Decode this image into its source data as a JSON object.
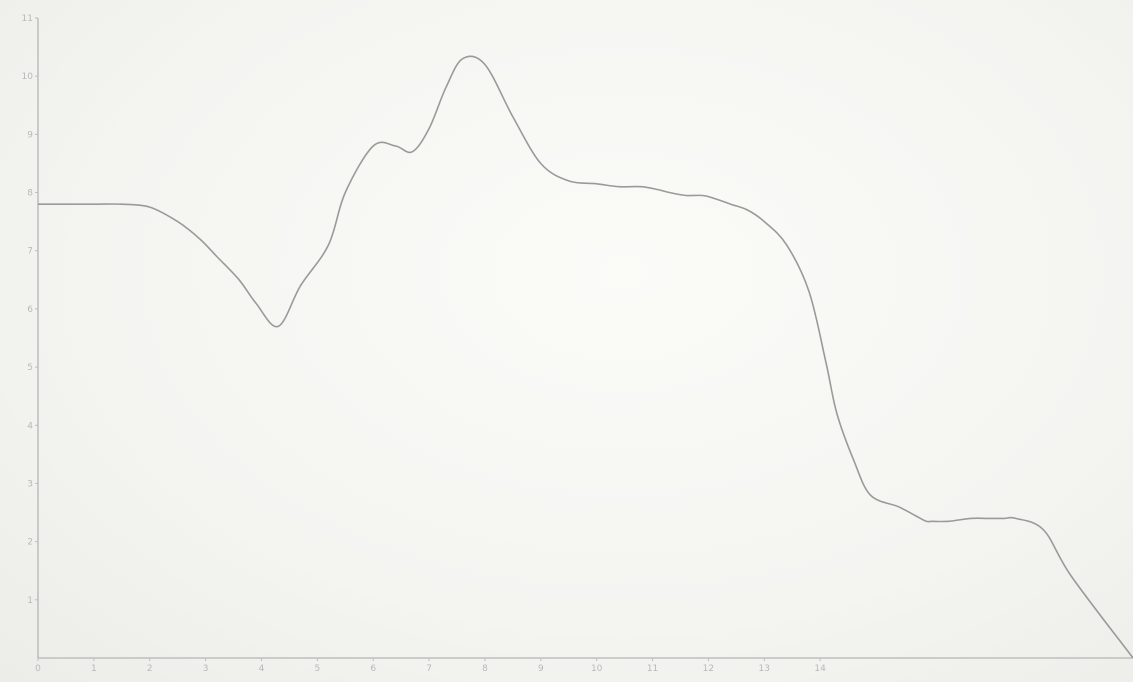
{
  "chart_data": {
    "type": "line",
    "title": "",
    "xlabel": "",
    "ylabel": "",
    "xlim": [
      0,
      19.6
    ],
    "ylim": [
      0,
      11
    ],
    "grid": false,
    "x_ticks": [
      0,
      1,
      2,
      3,
      4,
      5,
      6,
      7,
      8,
      9,
      10,
      11,
      12,
      13,
      14
    ],
    "y_ticks": [
      1,
      2,
      3,
      4,
      5,
      6,
      7,
      8,
      9,
      10,
      11
    ],
    "series": [
      {
        "color": "#9a9a9a",
        "x": [
          0,
          0.5,
          1.0,
          1.5,
          2.0,
          2.5,
          2.9,
          3.2,
          3.6,
          3.9,
          4.3,
          4.7,
          5.2,
          5.5,
          6.0,
          6.4,
          6.7,
          7.0,
          7.3,
          7.6,
          8.0,
          8.5,
          9.0,
          9.5,
          10.0,
          10.4,
          10.8,
          11.1,
          11.3,
          11.6,
          11.9,
          12.1,
          12.4,
          12.7,
          13.0,
          13.4,
          13.8,
          14.1,
          14.3,
          14.6,
          14.9,
          15.4,
          15.7,
          15.9,
          16.0,
          16.3,
          16.7,
          17.0,
          17.3,
          17.5,
          18.0,
          18.5,
          19.6
        ],
        "y": [
          7.8,
          7.8,
          7.8,
          7.8,
          7.75,
          7.5,
          7.2,
          6.9,
          6.5,
          6.1,
          5.7,
          6.4,
          7.1,
          8.0,
          8.8,
          8.8,
          8.7,
          9.1,
          9.8,
          10.3,
          10.2,
          9.3,
          8.5,
          8.2,
          8.15,
          8.1,
          8.1,
          8.05,
          8.0,
          7.95,
          7.95,
          7.9,
          7.8,
          7.7,
          7.5,
          7.1,
          6.3,
          5.1,
          4.2,
          3.4,
          2.8,
          2.6,
          2.45,
          2.35,
          2.35,
          2.35,
          2.4,
          2.4,
          2.4,
          2.4,
          2.2,
          1.4,
          0
        ]
      }
    ]
  }
}
